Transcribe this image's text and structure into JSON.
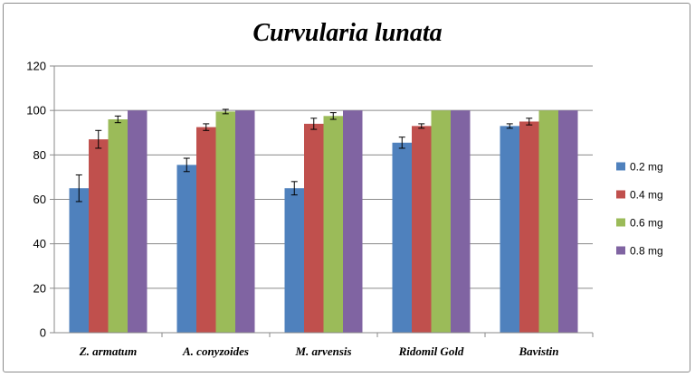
{
  "chart_data": {
    "type": "bar",
    "title": "Curvularia lunata",
    "xlabel": "",
    "ylabel": "",
    "ylim": [
      0,
      120
    ],
    "yticks": [
      0,
      20,
      40,
      60,
      80,
      100,
      120
    ],
    "grid": true,
    "legend_position": "right",
    "categories": [
      "Z. armatum",
      "A. conyzoides",
      "M. arvensis",
      "Ridomil Gold",
      "Bavistin"
    ],
    "series": [
      {
        "name": "0.2 mg",
        "color": "#4f81bd",
        "values": [
          65,
          75.5,
          65,
          85.5,
          93
        ],
        "errors": [
          6,
          3,
          3,
          2.5,
          1
        ]
      },
      {
        "name": "0.4 mg",
        "color": "#c0504d",
        "values": [
          87,
          92.5,
          94,
          93,
          95
        ],
        "errors": [
          4,
          1.5,
          2.5,
          1,
          1.5
        ]
      },
      {
        "name": "0.6 mg",
        "color": "#9bbb59",
        "values": [
          96,
          99.5,
          97.5,
          100,
          100
        ],
        "errors": [
          1.5,
          1,
          1.5,
          0,
          0
        ]
      },
      {
        "name": "0.8 mg",
        "color": "#8064a2",
        "values": [
          100,
          100,
          100,
          100,
          100
        ],
        "errors": [
          0,
          0,
          0,
          0,
          0
        ]
      }
    ]
  }
}
